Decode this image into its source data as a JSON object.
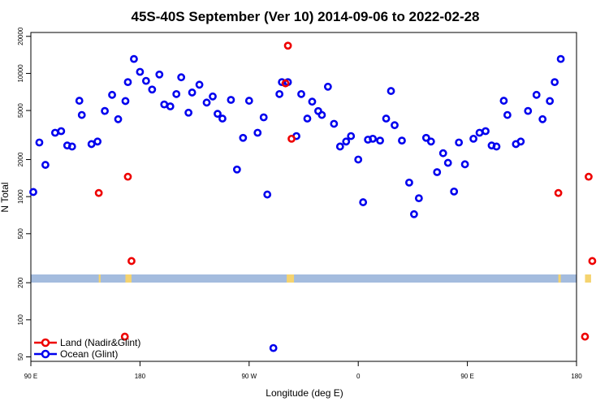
{
  "chart_data": {
    "type": "scatter",
    "title": "45S-40S September (Ver 10)   2014-09-06 to 2022-02-28",
    "xlabel": "Longitude (deg E)",
    "ylabel": "N Total",
    "x_scale": "longitude, 90E to 180 (wrapping through 180, 90W, 0, 90E)",
    "y_scale": "log",
    "ylim": [
      45,
      20000
    ],
    "y_ticks": [
      {
        "value": 50,
        "label": "50"
      },
      {
        "value": 100,
        "label": "100"
      },
      {
        "value": 200,
        "label": "200"
      },
      {
        "value": 500,
        "label": "500"
      },
      {
        "value": 1000,
        "label": "1000"
      },
      {
        "value": 2000,
        "label": "2000"
      },
      {
        "value": 5000,
        "label": "5000"
      },
      {
        "value": 10000,
        "label": "10000"
      },
      {
        "value": 20000,
        "label": "20000"
      }
    ],
    "x_ticks": [
      {
        "value": 90,
        "label": "90 E"
      },
      {
        "value": 180,
        "label": "180"
      },
      {
        "value": 270,
        "label": "90 W"
      },
      {
        "value": 360,
        "label": "0"
      },
      {
        "value": 450,
        "label": "90 E"
      },
      {
        "value": 540,
        "label": "180"
      }
    ],
    "land_strip": {
      "band_color": "#a4bcde",
      "land_color": "#f5d36f",
      "land_ranges_lon": [
        [
          146,
          147.5
        ],
        [
          168,
          173
        ],
        [
          301,
          307
        ],
        [
          525,
          527
        ],
        [
          547,
          552
        ]
      ]
    },
    "legend_position": "bottom-left",
    "series": [
      {
        "name": "Land (Nadir&Glint)",
        "color": "#ee0000",
        "points": [
          [
            146,
            1070
          ],
          [
            167.5,
            73
          ],
          [
            170,
            1450
          ],
          [
            173,
            300
          ],
          [
            300,
            8300
          ],
          [
            302,
            16800
          ],
          [
            305,
            2950
          ],
          [
            525,
            1070
          ],
          [
            547,
            73
          ],
          [
            550,
            1450
          ],
          [
            553,
            300
          ]
        ]
      },
      {
        "name": "Ocean (Glint)",
        "color": "#0000ee",
        "points": [
          [
            92,
            1090
          ],
          [
            97,
            2750
          ],
          [
            102,
            1810
          ],
          [
            110,
            3300
          ],
          [
            115,
            3400
          ],
          [
            120,
            2600
          ],
          [
            124,
            2550
          ],
          [
            130,
            6000
          ],
          [
            132,
            4600
          ],
          [
            140,
            2670
          ],
          [
            145,
            2800
          ],
          [
            151,
            4960
          ],
          [
            157,
            6700
          ],
          [
            162,
            4250
          ],
          [
            168,
            5970
          ],
          [
            170,
            8500
          ],
          [
            175,
            13100
          ],
          [
            180,
            10300
          ],
          [
            185,
            8700
          ],
          [
            190,
            7400
          ],
          [
            196,
            9800
          ],
          [
            200,
            5600
          ],
          [
            205,
            5400
          ],
          [
            210,
            6800
          ],
          [
            214,
            9300
          ],
          [
            220,
            4800
          ],
          [
            223,
            7000
          ],
          [
            229,
            8100
          ],
          [
            235,
            5800
          ],
          [
            240,
            6500
          ],
          [
            244,
            4700
          ],
          [
            248,
            4300
          ],
          [
            255,
            6100
          ],
          [
            260,
            1660
          ],
          [
            265,
            3000
          ],
          [
            270,
            6000
          ],
          [
            277,
            3300
          ],
          [
            282,
            4400
          ],
          [
            285,
            1040
          ],
          [
            290,
            59
          ],
          [
            295,
            6800
          ],
          [
            297,
            8500
          ],
          [
            302,
            8500
          ],
          [
            309,
            3100
          ],
          [
            313,
            6800
          ],
          [
            318,
            4300
          ],
          [
            322,
            5900
          ],
          [
            327,
            4950
          ],
          [
            330,
            4600
          ],
          [
            335,
            7800
          ],
          [
            340,
            3900
          ],
          [
            345,
            2550
          ],
          [
            350,
            2800
          ],
          [
            354,
            3100
          ],
          [
            360,
            2000
          ],
          [
            364,
            900
          ],
          [
            368,
            2900
          ],
          [
            372,
            2950
          ],
          [
            378,
            2850
          ],
          [
            383,
            4300
          ],
          [
            387,
            7200
          ],
          [
            390,
            3800
          ],
          [
            396,
            2850
          ],
          [
            402,
            1300
          ],
          [
            406,
            720
          ],
          [
            410,
            970
          ],
          [
            416,
            3000
          ],
          [
            420,
            2800
          ],
          [
            425,
            1580
          ],
          [
            430,
            2250
          ],
          [
            434,
            1880
          ],
          [
            439,
            1100
          ],
          [
            443,
            2750
          ],
          [
            448,
            1830
          ],
          [
            455,
            2950
          ],
          [
            460,
            3300
          ],
          [
            465,
            3400
          ],
          [
            470,
            2600
          ],
          [
            474,
            2550
          ],
          [
            480,
            6000
          ],
          [
            483,
            4600
          ],
          [
            490,
            2670
          ],
          [
            494,
            2800
          ],
          [
            500,
            4960
          ],
          [
            507,
            6700
          ],
          [
            512,
            4250
          ],
          [
            518,
            5970
          ],
          [
            522,
            8500
          ],
          [
            527,
            13100
          ]
        ]
      }
    ]
  }
}
